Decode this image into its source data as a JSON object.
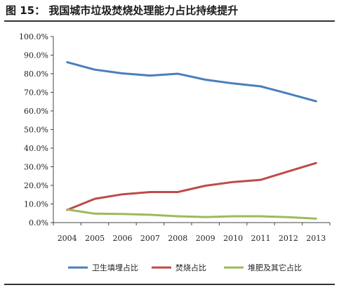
{
  "header": {
    "title": "图 15：  我国城市垃圾焚烧处理能力占比持续提升"
  },
  "chart_data": {
    "type": "line",
    "x": [
      "2004",
      "2005",
      "2006",
      "2007",
      "2008",
      "2009",
      "2010",
      "2011",
      "2012",
      "2013"
    ],
    "series": [
      {
        "name": "卫生填埋占比",
        "color": "#4a7ebb",
        "values": [
          86.2,
          82.2,
          80.2,
          79.0,
          80.0,
          76.8,
          74.8,
          73.2,
          69.3,
          65.2
        ]
      },
      {
        "name": "焚烧占比",
        "color": "#be4b48",
        "values": [
          6.8,
          12.8,
          15.2,
          16.4,
          16.4,
          19.8,
          21.8,
          23.0,
          27.5,
          32.0
        ]
      },
      {
        "name": "堆肥及其它占比",
        "color": "#9bbb59",
        "values": [
          7.0,
          4.8,
          4.6,
          4.2,
          3.4,
          3.0,
          3.4,
          3.4,
          2.9,
          2.1
        ]
      }
    ],
    "yticks": [
      "0.0%",
      "10.0%",
      "20.0%",
      "30.0%",
      "40.0%",
      "50.0%",
      "60.0%",
      "70.0%",
      "80.0%",
      "90.0%",
      "100.0%"
    ],
    "ylim": [
      0,
      100
    ],
    "grid": false,
    "legend_position": "bottom"
  }
}
